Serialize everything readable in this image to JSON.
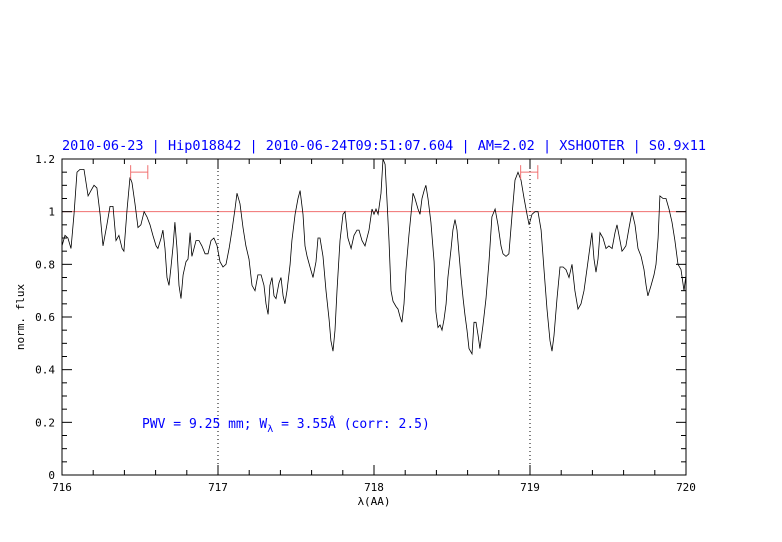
{
  "chart_data": {
    "type": "line",
    "title": "2010-06-23 | Hip018842 | 2010-06-24T09:51:07.604 | AM=2.02 | XSHOOTER | S0.9x11",
    "xlabel": "λ(AA)",
    "ylabel": "norm. flux",
    "xlim": [
      716,
      720
    ],
    "ylim": [
      0,
      1.2
    ],
    "xticks": [
      "716",
      "717",
      "718",
      "719",
      "720"
    ],
    "yticks": [
      "0",
      "0.2",
      "0.4",
      "0.6",
      "0.8",
      "1",
      "1.2"
    ],
    "annotation": "PWV = 9.25 mm; W",
    "annotation_sub": "λ",
    "annotation_rest": " = 3.55Å (corr: 2.5)",
    "reference_line": 1.0,
    "dotted_lines": [
      717,
      719
    ],
    "error_bars": [
      {
        "x1": 716.44,
        "x2": 716.55,
        "y": 1.15
      },
      {
        "x1": 718.94,
        "x2": 719.05,
        "y": 1.15
      }
    ],
    "colors": {
      "spectrum": "#000000",
      "title": "#0000ff",
      "reference": "#f07070",
      "error_bar": "#f07070"
    },
    "series": [
      {
        "name": "spectrum",
        "x": [
          716.0,
          716.019,
          716.038,
          716.058,
          716.077,
          716.096,
          716.115,
          716.141,
          716.167,
          716.186,
          716.205,
          716.224,
          716.244,
          716.263,
          716.288,
          716.308,
          716.327,
          716.346,
          716.365,
          716.385,
          716.397,
          716.417,
          716.436,
          716.449,
          716.468,
          716.487,
          716.506,
          716.526,
          716.545,
          716.564,
          716.583,
          716.603,
          716.615,
          716.635,
          716.647,
          716.66,
          716.673,
          716.686,
          716.699,
          716.712,
          716.724,
          716.737,
          716.75,
          716.763,
          716.776,
          716.795,
          716.808,
          716.821,
          716.833,
          716.846,
          716.859,
          716.878,
          716.897,
          716.917,
          716.936,
          716.955,
          716.974,
          716.994,
          717.013,
          717.032,
          717.051,
          717.071,
          717.09,
          717.109,
          717.122,
          717.141,
          717.16,
          717.179,
          717.199,
          717.218,
          717.237,
          717.256,
          717.276,
          717.295,
          717.308,
          717.321,
          717.333,
          717.346,
          717.359,
          717.372,
          717.391,
          717.404,
          717.417,
          717.429,
          717.442,
          717.462,
          717.474,
          717.494,
          717.513,
          717.526,
          717.545,
          717.558,
          717.571,
          717.59,
          717.609,
          717.628,
          717.641,
          717.654,
          717.673,
          717.692,
          717.712,
          717.724,
          717.737,
          717.75,
          717.763,
          717.782,
          717.801,
          717.814,
          717.833,
          717.853,
          717.872,
          717.891,
          717.904,
          717.923,
          717.942,
          717.955,
          717.968,
          717.987,
          718.0,
          718.013,
          718.026,
          718.045,
          718.058,
          718.071,
          718.083,
          718.096,
          718.109,
          718.122,
          718.141,
          718.154,
          718.167,
          718.179,
          718.192,
          718.205,
          718.224,
          718.237,
          718.25,
          718.263,
          718.282,
          718.295,
          718.308,
          718.321,
          718.333,
          718.346,
          718.365,
          718.385,
          718.397,
          718.41,
          718.423,
          718.436,
          718.449,
          718.462,
          718.474,
          718.494,
          718.506,
          718.519,
          718.532,
          718.545,
          718.558,
          718.571,
          718.583,
          718.596,
          718.609,
          718.628,
          718.641,
          718.654,
          718.667,
          718.679,
          718.699,
          718.718,
          718.737,
          718.756,
          718.776,
          718.795,
          718.814,
          718.827,
          718.846,
          718.865,
          718.885,
          718.904,
          718.923,
          718.942,
          718.962,
          718.981,
          718.994,
          719.013,
          719.032,
          719.051,
          719.071,
          719.09,
          719.109,
          719.128,
          719.141,
          719.154,
          719.173,
          719.192,
          719.212,
          719.231,
          719.25,
          719.269,
          719.288,
          719.308,
          719.327,
          719.346,
          719.365,
          719.385,
          719.397,
          719.41,
          719.423,
          719.436,
          719.449,
          719.468,
          719.487,
          719.506,
          719.526,
          719.545,
          719.558,
          719.577,
          719.59,
          719.603,
          719.615,
          719.635,
          719.654,
          719.673,
          719.692,
          719.712,
          719.731,
          719.744,
          719.756,
          719.776,
          719.795,
          719.808,
          719.821,
          719.833,
          719.853,
          719.872,
          719.891,
          719.91,
          719.929,
          719.949,
          719.968,
          719.987,
          720.0
        ],
        "y": [
          0.87,
          0.91,
          0.9,
          0.86,
          0.99,
          1.15,
          1.16,
          1.16,
          1.06,
          1.08,
          1.1,
          1.09,
          0.99,
          0.87,
          0.95,
          1.02,
          1.02,
          0.89,
          0.91,
          0.86,
          0.85,
          1.01,
          1.13,
          1.11,
          1.03,
          0.94,
          0.95,
          1.0,
          0.98,
          0.95,
          0.91,
          0.87,
          0.86,
          0.9,
          0.93,
          0.86,
          0.75,
          0.72,
          0.79,
          0.87,
          0.96,
          0.86,
          0.72,
          0.67,
          0.76,
          0.81,
          0.82,
          0.92,
          0.83,
          0.86,
          0.89,
          0.89,
          0.87,
          0.84,
          0.84,
          0.89,
          0.9,
          0.87,
          0.81,
          0.79,
          0.8,
          0.86,
          0.93,
          1.01,
          1.07,
          1.03,
          0.94,
          0.87,
          0.82,
          0.72,
          0.7,
          0.76,
          0.76,
          0.72,
          0.65,
          0.61,
          0.72,
          0.75,
          0.68,
          0.67,
          0.73,
          0.75,
          0.68,
          0.65,
          0.7,
          0.8,
          0.89,
          0.99,
          1.05,
          1.08,
          0.99,
          0.87,
          0.83,
          0.79,
          0.75,
          0.81,
          0.9,
          0.9,
          0.83,
          0.7,
          0.59,
          0.51,
          0.47,
          0.55,
          0.7,
          0.89,
          0.99,
          1.0,
          0.9,
          0.86,
          0.91,
          0.93,
          0.93,
          0.89,
          0.87,
          0.9,
          0.93,
          1.01,
          0.99,
          1.01,
          0.99,
          1.07,
          1.2,
          1.18,
          1.05,
          0.89,
          0.7,
          0.66,
          0.64,
          0.63,
          0.6,
          0.58,
          0.65,
          0.78,
          0.91,
          0.99,
          1.07,
          1.05,
          1.01,
          0.99,
          1.05,
          1.08,
          1.1,
          1.05,
          0.96,
          0.81,
          0.62,
          0.56,
          0.57,
          0.55,
          0.59,
          0.65,
          0.75,
          0.86,
          0.93,
          0.97,
          0.93,
          0.84,
          0.75,
          0.67,
          0.61,
          0.55,
          0.48,
          0.46,
          0.58,
          0.58,
          0.53,
          0.48,
          0.57,
          0.67,
          0.81,
          0.98,
          1.01,
          0.95,
          0.87,
          0.84,
          0.83,
          0.84,
          0.99,
          1.12,
          1.15,
          1.12,
          1.05,
          0.99,
          0.95,
          0.99,
          1.0,
          1.0,
          0.93,
          0.78,
          0.63,
          0.51,
          0.47,
          0.53,
          0.67,
          0.79,
          0.79,
          0.78,
          0.75,
          0.8,
          0.7,
          0.63,
          0.65,
          0.7,
          0.78,
          0.87,
          0.92,
          0.82,
          0.77,
          0.82,
          0.92,
          0.9,
          0.86,
          0.87,
          0.86,
          0.92,
          0.95,
          0.89,
          0.85,
          0.86,
          0.87,
          0.94,
          1.0,
          0.95,
          0.86,
          0.83,
          0.78,
          0.72,
          0.68,
          0.72,
          0.76,
          0.8,
          0.9,
          1.06,
          1.05,
          1.05,
          1.01,
          0.96,
          0.89,
          0.8,
          0.78,
          0.7,
          0.76
        ]
      }
    ]
  }
}
